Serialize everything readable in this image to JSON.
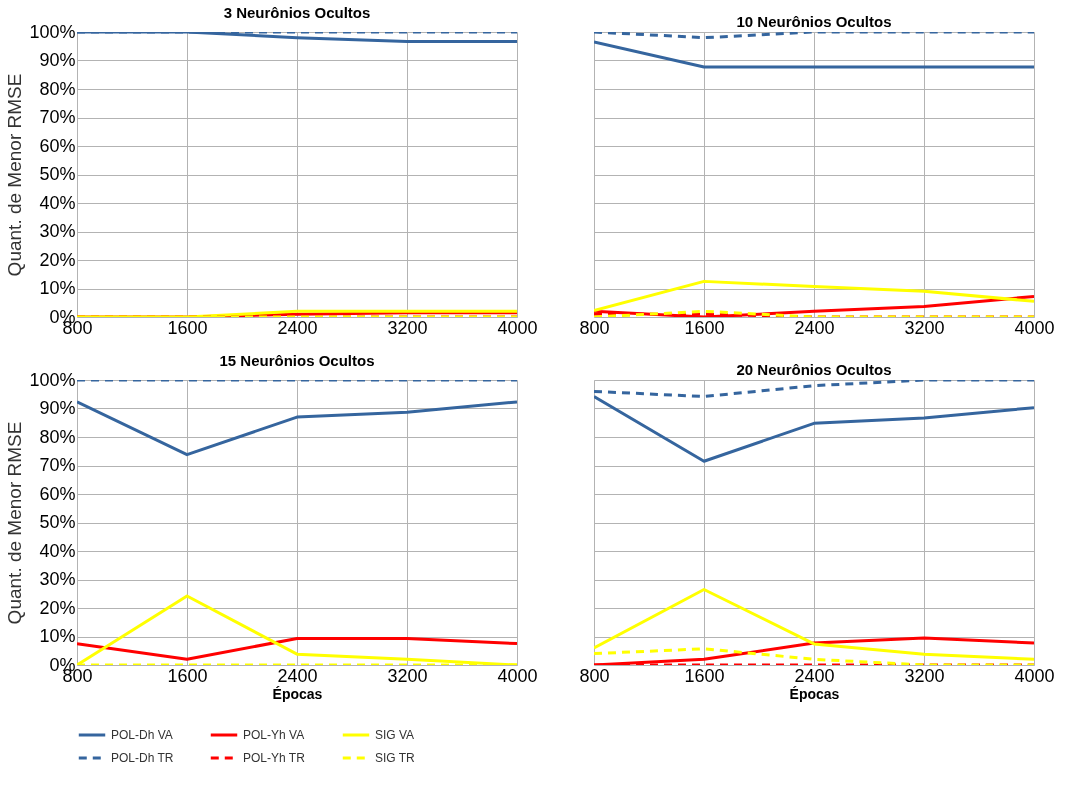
{
  "chart_data": [
    {
      "type": "line",
      "title": "3 Neurônios Ocultos",
      "ylabel": "Quant. de Menor RMSE",
      "x": [
        800,
        1600,
        2400,
        3200,
        4000
      ],
      "xlim": [
        800,
        4000
      ],
      "xticks": [
        800,
        1600,
        2400,
        3200,
        4000
      ],
      "ylim": [
        0,
        100
      ],
      "yticks": [
        {
          "value": 0,
          "label": "0%"
        },
        {
          "value": 10,
          "label": "10%"
        },
        {
          "value": 20,
          "label": "20%"
        },
        {
          "value": 30,
          "label": "30%"
        },
        {
          "value": 40,
          "label": "40%"
        },
        {
          "value": 50,
          "label": "50%"
        },
        {
          "value": 60,
          "label": "60%"
        },
        {
          "value": 70,
          "label": "70%"
        },
        {
          "value": 80,
          "label": "80%"
        },
        {
          "value": 90,
          "label": "90%"
        },
        {
          "value": 100,
          "label": "100%"
        }
      ],
      "grid": true,
      "legend": "bottom",
      "series": [
        {
          "name": "POL-Dh VA",
          "color": "#35659e",
          "line_style": "solid",
          "values": [
            100,
            100,
            98,
            96.7,
            96.7
          ]
        },
        {
          "name": "POL-Yh VA",
          "color": "#ff0000",
          "line_style": "solid",
          "values": [
            0,
            0,
            1,
            1.5,
            1.5
          ]
        },
        {
          "name": "SIG VA",
          "color": "#ffff00",
          "line_style": "solid",
          "values": [
            0,
            0,
            2,
            2,
            2
          ]
        },
        {
          "name": "POL-Dh TR",
          "color": "#35659e",
          "line_style": "dashed",
          "values": [
            100,
            100,
            100,
            100,
            100
          ]
        },
        {
          "name": "POL-Yh TR",
          "color": "#ff0000",
          "line_style": "dashed",
          "values": [
            0,
            0,
            0,
            0,
            0
          ]
        },
        {
          "name": "SIG TR",
          "color": "#ffff00",
          "line_style": "dashed",
          "values": [
            0,
            0,
            0,
            0,
            0
          ]
        }
      ]
    },
    {
      "type": "line",
      "title": "10 Neurônios Ocultos",
      "x": [
        800,
        1600,
        2400,
        3200,
        4000
      ],
      "xlim": [
        800,
        4000
      ],
      "xticks": [
        800,
        1600,
        2400,
        3200,
        4000
      ],
      "ylim": [
        0,
        100
      ],
      "yticks": [
        {
          "value": 0,
          "label": "0%"
        },
        {
          "value": 10,
          "label": "10%"
        },
        {
          "value": 20,
          "label": "20%"
        },
        {
          "value": 30,
          "label": "30%"
        },
        {
          "value": 40,
          "label": "40%"
        },
        {
          "value": 50,
          "label": "50%"
        },
        {
          "value": 60,
          "label": "60%"
        },
        {
          "value": 70,
          "label": "70%"
        },
        {
          "value": 80,
          "label": "80%"
        },
        {
          "value": 90,
          "label": "90%"
        },
        {
          "value": 100,
          "label": "100%"
        }
      ],
      "grid": true,
      "tick_labels": "x",
      "legend": "bottom",
      "series": [
        {
          "name": "POL-Dh VA",
          "color": "#35659e",
          "line_style": "solid",
          "values": [
            96.5,
            87.7,
            87.7,
            87.7,
            87.7
          ]
        },
        {
          "name": "POL-Yh VA",
          "color": "#ff0000",
          "line_style": "solid",
          "values": [
            2,
            0,
            2,
            3.7,
            7.2
          ]
        },
        {
          "name": "SIG VA",
          "color": "#ffff00",
          "line_style": "solid",
          "values": [
            2.3,
            12.5,
            10.7,
            9,
            5.5
          ]
        },
        {
          "name": "POL-Dh TR",
          "color": "#35659e",
          "line_style": "dashed",
          "values": [
            100,
            98,
            100,
            100,
            100
          ]
        },
        {
          "name": "POL-Yh TR",
          "color": "#ff0000",
          "line_style": "dashed",
          "values": [
            1,
            1,
            0,
            0,
            0
          ]
        },
        {
          "name": "SIG TR",
          "color": "#ffff00",
          "line_style": "dashed",
          "values": [
            0,
            2,
            0,
            0,
            0
          ]
        }
      ]
    },
    {
      "type": "line",
      "title": "15 Neurônios Ocultos",
      "ylabel": "Quant. de Menor RMSE",
      "xlabel": "Épocas",
      "x": [
        800,
        1600,
        2400,
        3200,
        4000
      ],
      "xlim": [
        800,
        4000
      ],
      "xticks": [
        800,
        1600,
        2400,
        3200,
        4000
      ],
      "ylim": [
        0,
        100
      ],
      "yticks": [
        {
          "value": 0,
          "label": "0%"
        },
        {
          "value": 10,
          "label": "10%"
        },
        {
          "value": 20,
          "label": "20%"
        },
        {
          "value": 30,
          "label": "30%"
        },
        {
          "value": 40,
          "label": "40%"
        },
        {
          "value": 50,
          "label": "50%"
        },
        {
          "value": 60,
          "label": "60%"
        },
        {
          "value": 70,
          "label": "70%"
        },
        {
          "value": 80,
          "label": "80%"
        },
        {
          "value": 90,
          "label": "90%"
        },
        {
          "value": 100,
          "label": "100%"
        }
      ],
      "grid": true,
      "legend": "bottom",
      "series": [
        {
          "name": "POL-Dh VA",
          "color": "#35659e",
          "line_style": "solid",
          "values": [
            92.3,
            73.8,
            87,
            88.7,
            92.3
          ]
        },
        {
          "name": "POL-Yh VA",
          "color": "#ff0000",
          "line_style": "solid",
          "values": [
            7.5,
            2,
            9.3,
            9.3,
            7.5
          ]
        },
        {
          "name": "SIG VA",
          "color": "#ffff00",
          "line_style": "solid",
          "values": [
            0,
            24.2,
            3.8,
            2,
            0
          ]
        },
        {
          "name": "POL-Dh TR",
          "color": "#35659e",
          "line_style": "dashed",
          "values": [
            100,
            100,
            100,
            100,
            100
          ]
        },
        {
          "name": "POL-Yh TR",
          "color": "#ff0000",
          "line_style": "dashed",
          "values": [
            null,
            null,
            null,
            null,
            null
          ]
        },
        {
          "name": "SIG TR",
          "color": "#ffff00",
          "line_style": "dashed",
          "values": [
            0,
            0,
            0,
            0,
            0
          ]
        }
      ]
    },
    {
      "type": "line",
      "title": "20 Neurônios Ocultos",
      "xlabel": "Épocas",
      "x": [
        800,
        1600,
        2400,
        3200,
        4000
      ],
      "xlim": [
        800,
        4000
      ],
      "xticks": [
        800,
        1600,
        2400,
        3200,
        4000
      ],
      "ylim": [
        0,
        100
      ],
      "yticks": [
        {
          "value": 0,
          "label": "0%"
        },
        {
          "value": 10,
          "label": "10%"
        },
        {
          "value": 20,
          "label": "20%"
        },
        {
          "value": 30,
          "label": "30%"
        },
        {
          "value": 40,
          "label": "40%"
        },
        {
          "value": 50,
          "label": "50%"
        },
        {
          "value": 60,
          "label": "60%"
        },
        {
          "value": 70,
          "label": "70%"
        },
        {
          "value": 80,
          "label": "80%"
        },
        {
          "value": 90,
          "label": "90%"
        },
        {
          "value": 100,
          "label": "100%"
        }
      ],
      "grid": true,
      "tick_labels": "x",
      "legend": "bottom",
      "series": [
        {
          "name": "POL-Dh VA",
          "color": "#35659e",
          "line_style": "solid",
          "values": [
            94.2,
            71.5,
            84.8,
            86.7,
            90.3
          ]
        },
        {
          "name": "POL-Yh VA",
          "color": "#ff0000",
          "line_style": "solid",
          "values": [
            0,
            2,
            7.7,
            9.5,
            7.7
          ]
        },
        {
          "name": "SIG VA",
          "color": "#ffff00",
          "line_style": "solid",
          "values": [
            6,
            26.5,
            7.4,
            3.8,
            2
          ]
        },
        {
          "name": "POL-Dh TR",
          "color": "#35659e",
          "line_style": "dashed",
          "values": [
            96,
            94.2,
            98,
            100,
            100
          ]
        },
        {
          "name": "POL-Yh TR",
          "color": "#ff0000",
          "line_style": "dashed",
          "values": [
            0,
            0,
            0,
            0,
            0
          ]
        },
        {
          "name": "SIG TR",
          "color": "#ffff00",
          "line_style": "dashed",
          "values": [
            4,
            5.7,
            2,
            0,
            0
          ]
        }
      ]
    }
  ]
}
